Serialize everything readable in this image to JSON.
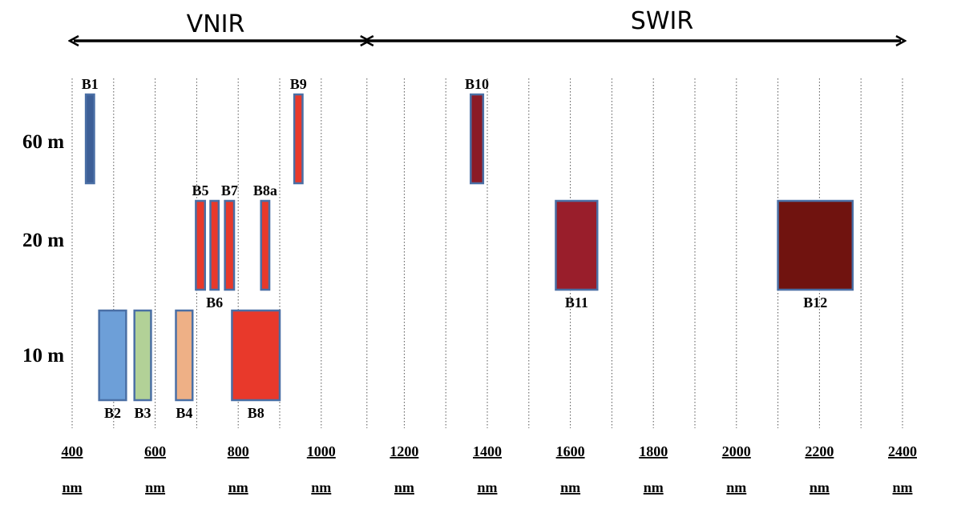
{
  "ranges": [
    {
      "label": "VNIR",
      "from_nm": 400,
      "to_nm": 1110
    },
    {
      "label": "SWIR",
      "from_nm": 1110,
      "to_nm": 2400
    }
  ],
  "resolutions": [
    {
      "label": "60 m",
      "level": 60
    },
    {
      "label": "20 m",
      "level": 20
    },
    {
      "label": "10 m",
      "level": 10
    }
  ],
  "ticks": [
    {
      "value": "400",
      "unit": "nm"
    },
    {
      "value": "600",
      "unit": "nm"
    },
    {
      "value": "800",
      "unit": "nm"
    },
    {
      "value": "1000",
      "unit": "nm"
    },
    {
      "value": "1200",
      "unit": "nm"
    },
    {
      "value": "1400",
      "unit": "nm"
    },
    {
      "value": "1600",
      "unit": "nm"
    },
    {
      "value": "1800",
      "unit": "nm"
    },
    {
      "value": "2000",
      "unit": "nm"
    },
    {
      "value": "2200",
      "unit": "nm"
    },
    {
      "value": "2400",
      "unit": "nm"
    }
  ],
  "gridlines_nm": [
    400,
    500,
    600,
    700,
    800,
    900,
    1000,
    1110,
    1200,
    1300,
    1400,
    1500,
    1600,
    1700,
    1800,
    1900,
    2000,
    2100,
    2200,
    2300,
    2400
  ],
  "bands": [
    {
      "label": "B1",
      "resolution": 60,
      "from_nm": 433,
      "to_nm": 453,
      "color": "#3d5f97",
      "label_pos": "above"
    },
    {
      "label": "B9",
      "resolution": 60,
      "from_nm": 935,
      "to_nm": 955,
      "color": "#e8392b",
      "label_pos": "above"
    },
    {
      "label": "B10",
      "resolution": 60,
      "from_nm": 1360,
      "to_nm": 1390,
      "color": "#8b1a26",
      "label_pos": "above"
    },
    {
      "label": "B5",
      "resolution": 20,
      "from_nm": 698,
      "to_nm": 720,
      "color": "#e8392b",
      "label_pos": "above"
    },
    {
      "label": "B6",
      "resolution": 20,
      "from_nm": 733,
      "to_nm": 753,
      "color": "#e8392b",
      "label_pos": "below"
    },
    {
      "label": "B7",
      "resolution": 20,
      "from_nm": 768,
      "to_nm": 790,
      "color": "#e8392b",
      "label_pos": "above"
    },
    {
      "label": "B8a",
      "resolution": 20,
      "from_nm": 855,
      "to_nm": 875,
      "color": "#e8392b",
      "label_pos": "above"
    },
    {
      "label": "B11",
      "resolution": 20,
      "from_nm": 1565,
      "to_nm": 1665,
      "color": "#991e2b",
      "label_pos": "below"
    },
    {
      "label": "B12",
      "resolution": 20,
      "from_nm": 2100,
      "to_nm": 2280,
      "color": "#70130f",
      "label_pos": "below"
    },
    {
      "label": "B2",
      "resolution": 10,
      "from_nm": 465,
      "to_nm": 530,
      "color": "#6d9fd8",
      "label_pos": "below"
    },
    {
      "label": "B3",
      "resolution": 10,
      "from_nm": 550,
      "to_nm": 590,
      "color": "#b2d197",
      "label_pos": "below"
    },
    {
      "label": "B4",
      "resolution": 10,
      "from_nm": 650,
      "to_nm": 690,
      "color": "#eeb086",
      "label_pos": "below"
    },
    {
      "label": "B8",
      "resolution": 10,
      "from_nm": 785,
      "to_nm": 900,
      "color": "#e8392b",
      "label_pos": "below"
    }
  ],
  "colors": {
    "band_border": "#4a6fa5",
    "arrow": "#000000",
    "grid": "#555555"
  }
}
